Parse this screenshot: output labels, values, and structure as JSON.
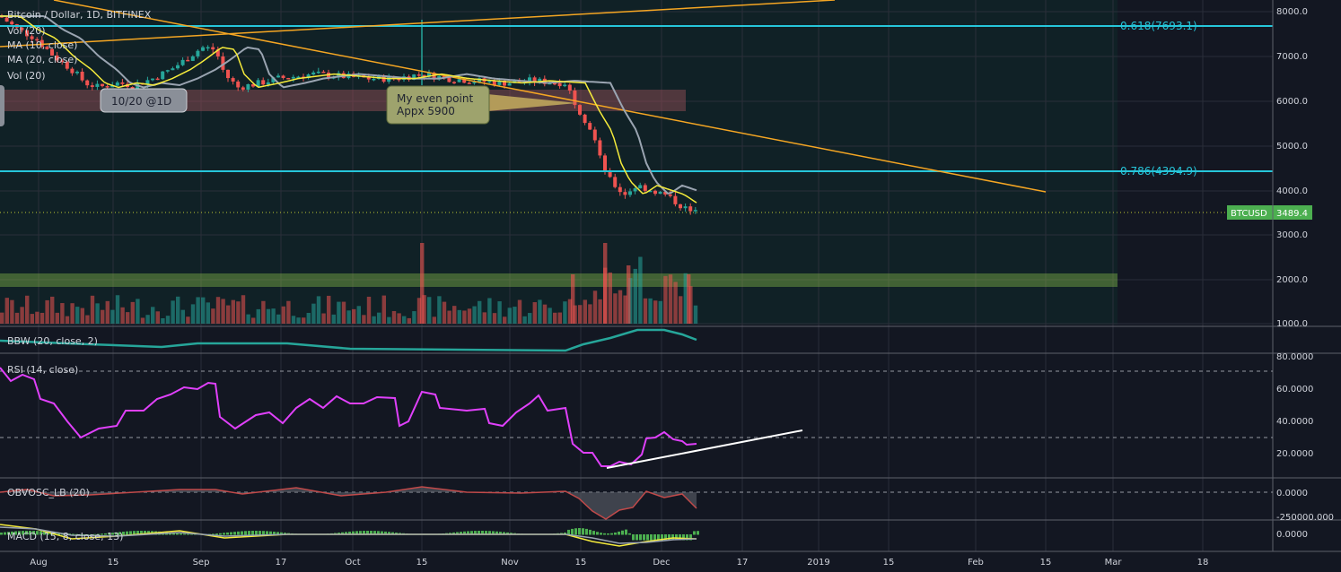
{
  "header": {
    "symbol": "Bitcoin / Dollar, 1D, BITFINEX",
    "indicators": [
      "Vol (20)",
      "MA (10, close)",
      "MA (20, close)",
      "Vol (20)"
    ]
  },
  "annotations": {
    "timeframe_note": "10/20 @1D",
    "even_point_line1": "My even point",
    "even_point_line2": "Appx 5900",
    "fib_618": "0.618(7693.1)",
    "fib_786": "0.786(4394.9)",
    "price_ticker_symbol": "BTCUSD",
    "price_ticker_value": "3489.4"
  },
  "panes": {
    "bbw_label": "BBW (20, close, 2)",
    "rsi_label": "RSI (14, close)",
    "obv_label": "OBVOSC_LB (20)",
    "macd_label": "MACD (15, 8, close, 13)"
  },
  "price_axis": [
    "8000.0",
    "7000.0",
    "6000.0",
    "5000.0",
    "4000.0",
    "3000.0",
    "2000.0",
    "1000.0"
  ],
  "rsi_axis": [
    "80.0000",
    "60.0000",
    "40.0000",
    "20.0000"
  ],
  "obv_axis": [
    "0.0000",
    "-250000.000"
  ],
  "macd_axis": [
    "0.0000"
  ],
  "time_axis": [
    "Aug",
    "15",
    "Sep",
    "17",
    "Oct",
    "15",
    "Nov",
    "15",
    "Dec",
    "17",
    "2019",
    "15",
    "Feb",
    "15",
    "Mar",
    "18"
  ],
  "colors": {
    "background": "#131722",
    "up": "#26a69a",
    "down": "#ef5350",
    "fib": "#26c6da",
    "trendline": "#f5a623",
    "ma10": "#f5eb3b",
    "ma20": "#9aa4b1",
    "rsi": "#e040fb"
  },
  "chart_data": {
    "type": "line",
    "title": "Bitcoin / Dollar, 1D, BITFINEX",
    "series": [
      {
        "name": "BTCUSD",
        "x": [
          "Aug",
          "Aug 15",
          "Sep",
          "Sep 17",
          "Oct",
          "Oct 15",
          "Nov",
          "Nov 15",
          "Dec"
        ],
        "values": [
          7600,
          6300,
          7200,
          6500,
          6600,
          6500,
          6400,
          4300,
          3489.4
        ]
      }
    ],
    "ylim": [
      1000,
      8200
    ],
    "fib_levels": [
      {
        "label": "0.618",
        "value": 7693.1
      },
      {
        "label": "0.786",
        "value": 4394.9
      }
    ],
    "last_price": 3489.4,
    "zones": [
      {
        "from": 5800,
        "to": 6200
      },
      {
        "from": 1800,
        "to": 2100
      }
    ],
    "rsi_reference_lines": [
      70,
      30
    ],
    "grid": true
  }
}
